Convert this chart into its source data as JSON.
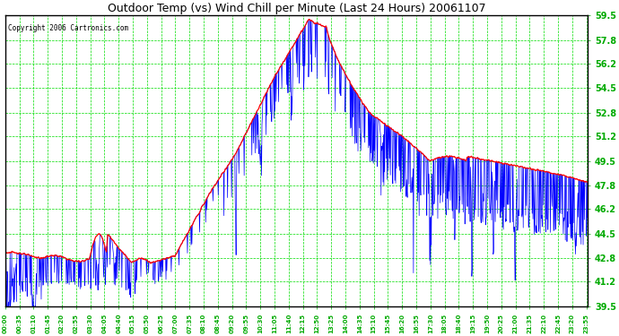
{
  "title": "Outdoor Temp (vs) Wind Chill per Minute (Last 24 Hours) 20061107",
  "copyright": "Copyright 2006 Cartronics.com",
  "ylim": [
    39.5,
    59.5
  ],
  "yticks": [
    39.5,
    41.2,
    42.8,
    44.5,
    46.2,
    47.8,
    49.5,
    51.2,
    52.8,
    54.5,
    56.2,
    57.8,
    59.5
  ],
  "bg_color": "#ffffff",
  "grid_color": "#00dd00",
  "outdoor_color": "#ff0000",
  "windchill_color": "#0000ff",
  "title_color": "#000000",
  "copyright_color": "#000000",
  "tick_label_color": "#00aa00",
  "n_minutes": 1440,
  "tick_every_min": 35,
  "figwidth": 6.9,
  "figheight": 3.75,
  "dpi": 100
}
